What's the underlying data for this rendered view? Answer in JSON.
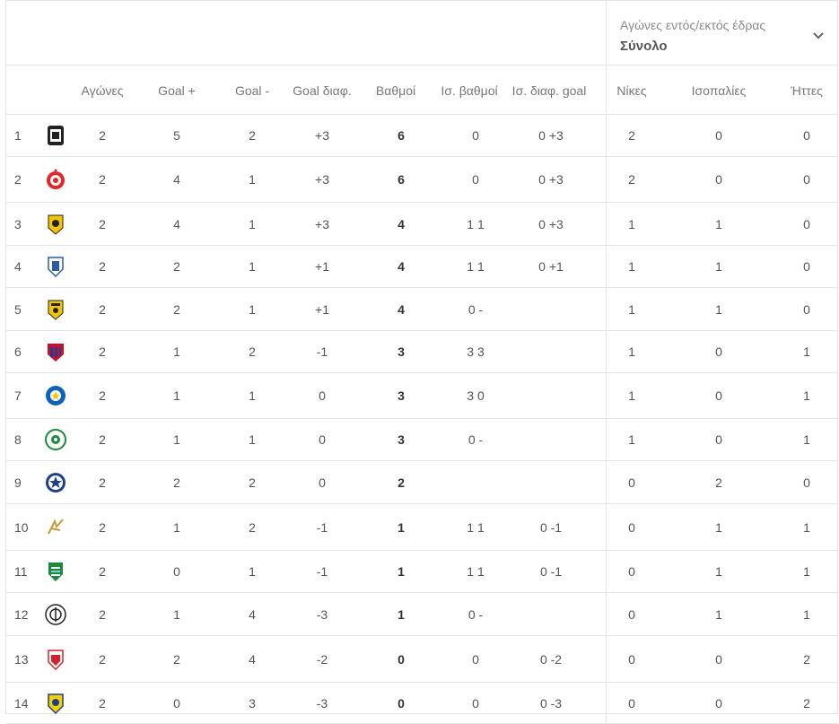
{
  "filter": {
    "label": "Αγώνες εντός/εκτός έδρας",
    "value": "Σύνολο",
    "icon": "chevron-down-icon"
  },
  "columns": [
    "Αγώνες",
    "Goal +",
    "Goal -",
    "Goal διαφ.",
    "Βαθμοί",
    "Ισ. βαθμοί",
    "Ισ. διαφ. goal",
    "Νίκες",
    "Ισοπαλίες",
    "Ήττες"
  ],
  "rows": [
    {
      "pos": "1",
      "played": "2",
      "gf": "5",
      "ga": "2",
      "gd": "+3",
      "pts": "6",
      "tie_pts": "0",
      "tie_gd": "0 +3",
      "w": "2",
      "d": "0",
      "l": "0",
      "logo": "paok-crest"
    },
    {
      "pos": "2",
      "played": "2",
      "gf": "4",
      "ga": "1",
      "gd": "+3",
      "pts": "6",
      "tie_pts": "0",
      "tie_gd": "0 +3",
      "w": "2",
      "d": "0",
      "l": "0",
      "logo": "olympiacos-crest"
    },
    {
      "pos": "3",
      "played": "2",
      "gf": "4",
      "ga": "1",
      "gd": "+3",
      "pts": "4",
      "tie_pts": "1 1",
      "tie_gd": "0 +3",
      "w": "1",
      "d": "1",
      "l": "0",
      "logo": "aek-crest"
    },
    {
      "pos": "4",
      "played": "2",
      "gf": "2",
      "ga": "1",
      "gd": "+1",
      "pts": "4",
      "tie_pts": "1 1",
      "tie_gd": "0 +1",
      "w": "1",
      "d": "1",
      "l": "0",
      "logo": "lamia-crest"
    },
    {
      "pos": "5",
      "played": "2",
      "gf": "2",
      "ga": "1",
      "gd": "+1",
      "pts": "4",
      "tie_pts": "0 -",
      "tie_gd": "",
      "w": "1",
      "d": "1",
      "l": "0",
      "logo": "aris-crest"
    },
    {
      "pos": "6",
      "played": "2",
      "gf": "1",
      "ga": "2",
      "gd": "-1",
      "pts": "3",
      "tie_pts": "3 3",
      "tie_gd": "",
      "w": "1",
      "d": "0",
      "l": "1",
      "logo": "volos-crest"
    },
    {
      "pos": "7",
      "played": "2",
      "gf": "1",
      "ga": "1",
      "gd": "0",
      "pts": "3",
      "tie_pts": "3 0",
      "tie_gd": "",
      "w": "1",
      "d": "0",
      "l": "1",
      "logo": "asteras-crest"
    },
    {
      "pos": "8",
      "played": "2",
      "gf": "1",
      "ga": "1",
      "gd": "0",
      "pts": "3",
      "tie_pts": "0 -",
      "tie_gd": "",
      "w": "1",
      "d": "0",
      "l": "1",
      "logo": "panathinaikos-crest"
    },
    {
      "pos": "9",
      "played": "2",
      "gf": "2",
      "ga": "2",
      "gd": "0",
      "pts": "2",
      "tie_pts": "",
      "tie_gd": "",
      "w": "0",
      "d": "2",
      "l": "0",
      "logo": "atromitos-crest"
    },
    {
      "pos": "10",
      "played": "2",
      "gf": "1",
      "ga": "2",
      "gd": "-1",
      "pts": "1",
      "tie_pts": "1 1",
      "tie_gd": "0 -1",
      "w": "0",
      "d": "1",
      "l": "1",
      "logo": "ofi-crest"
    },
    {
      "pos": "11",
      "played": "2",
      "gf": "0",
      "ga": "1",
      "gd": "-1",
      "pts": "1",
      "tie_pts": "1 1",
      "tie_gd": "0 -1",
      "w": "0",
      "d": "1",
      "l": "1",
      "logo": "levadiakos-crest"
    },
    {
      "pos": "12",
      "played": "2",
      "gf": "1",
      "ga": "4",
      "gd": "-3",
      "pts": "1",
      "tie_pts": "0 -",
      "tie_gd": "",
      "w": "0",
      "d": "1",
      "l": "1",
      "logo": "ofi-crete-crest"
    },
    {
      "pos": "13",
      "played": "2",
      "gf": "2",
      "ga": "4",
      "gd": "-2",
      "pts": "0",
      "tie_pts": "0",
      "tie_gd": "0 -2",
      "w": "0",
      "d": "0",
      "l": "2",
      "logo": "panionios-crest"
    },
    {
      "pos": "14",
      "played": "2",
      "gf": "0",
      "ga": "3",
      "gd": "-3",
      "pts": "0",
      "tie_pts": "0",
      "tie_gd": "0 -3",
      "w": "0",
      "d": "0",
      "l": "2",
      "logo": "panetolikos-crest"
    }
  ],
  "colors": {
    "border": "#e4e4e4",
    "text": "#555555",
    "muted": "#8a8a8a"
  }
}
